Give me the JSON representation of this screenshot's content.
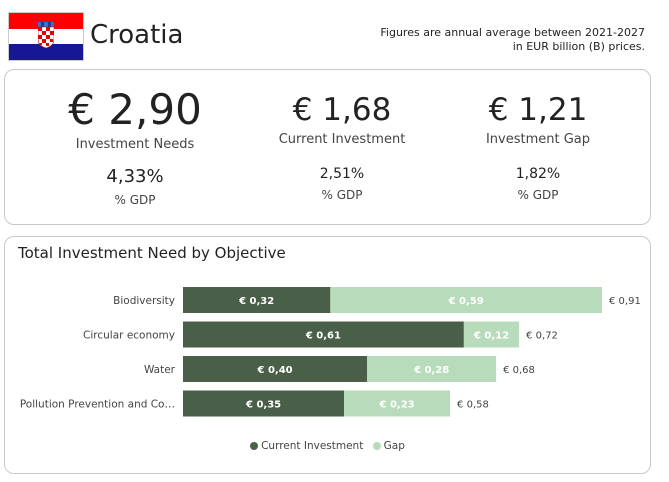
{
  "header": {
    "country": "Croatia",
    "note_line1": "Figures are annual average between 2021-2027",
    "note_line2": "in EUR billion (B) prices."
  },
  "kpis": [
    {
      "value": "€ 2,90",
      "label": "Investment Needs",
      "pct": "4,33%",
      "pct_label": "% GDP"
    },
    {
      "value": "€ 1,68",
      "label": "Current Investment",
      "pct": "2,51%",
      "pct_label": "% GDP"
    },
    {
      "value": "€ 1,21",
      "label": "Investment Gap",
      "pct": "1,82%",
      "pct_label": "% GDP"
    }
  ],
  "colors": {
    "current_investment": "#4a5f47",
    "gap": "#b8dcbb",
    "flag_red": "#ff0000",
    "flag_white": "#ffffff",
    "flag_blue": "#171796"
  },
  "chart_data": {
    "type": "bar",
    "orientation": "horizontal",
    "stacked": true,
    "title": "Total Investment Need by Objective",
    "categories": [
      "Biodiversity",
      "Circular economy",
      "Water",
      "Pollution Prevention and Co…"
    ],
    "series": [
      {
        "name": "Current Investment",
        "values": [
          0.32,
          0.61,
          0.4,
          0.35
        ],
        "labels": [
          "€ 0,32",
          "€ 0,61",
          "€ 0,40",
          "€ 0,35"
        ]
      },
      {
        "name": "Gap",
        "values": [
          0.59,
          0.12,
          0.28,
          0.23
        ],
        "labels": [
          "€ 0,59",
          "€ 0,12",
          "€ 0,28",
          "€ 0,23"
        ]
      }
    ],
    "totals": [
      0.91,
      0.72,
      0.68,
      0.58
    ],
    "total_labels": [
      "€ 0,91",
      "€ 0,72",
      "€ 0,68",
      "€ 0,58"
    ],
    "xlim": [
      0,
      0.91
    ],
    "grid": false,
    "legend_position": "bottom"
  }
}
